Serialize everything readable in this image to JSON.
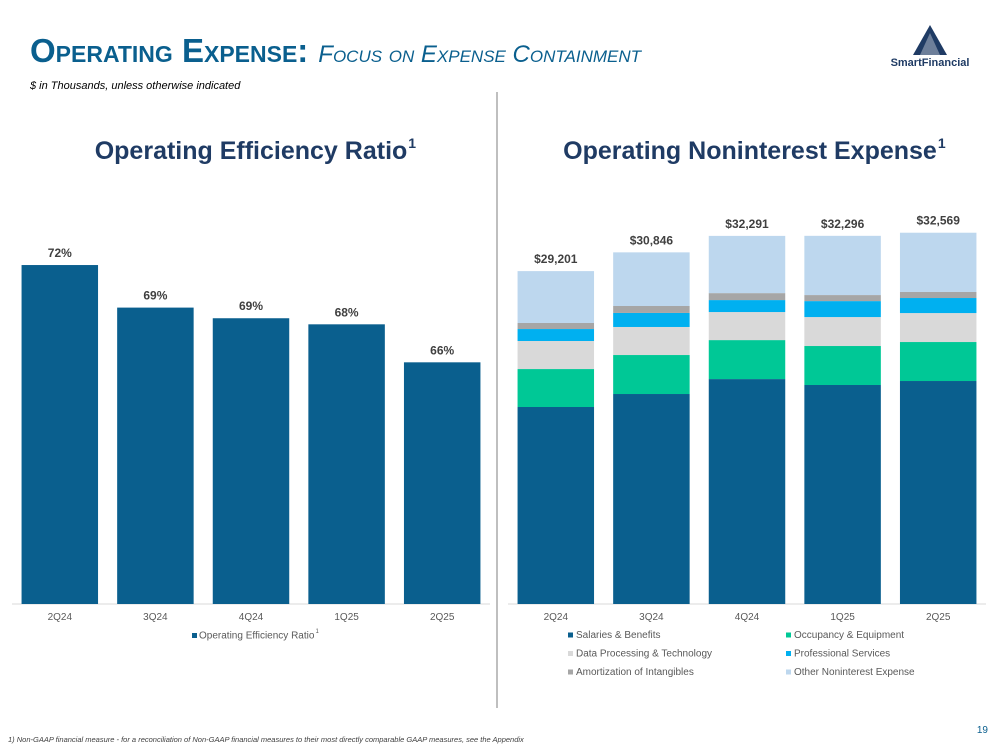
{
  "header": {
    "title_lead": "Operating Expense:",
    "title_rest": "Focus on Expense Containment",
    "subtitle": "$ in Thousands, unless otherwise indicated",
    "logo": "SmartFinancial"
  },
  "chart_data": [
    {
      "type": "bar",
      "title": "Operating Efficiency Ratio",
      "title_note": "1",
      "categories": [
        "2Q24",
        "3Q24",
        "4Q24",
        "1Q25",
        "2Q25"
      ],
      "series": [
        {
          "name": "Operating Efficiency Ratio",
          "color": "#0a5f8e",
          "values": [
            72.3,
            69.5,
            68.8,
            68.4,
            65.9
          ],
          "value_labels": [
            "72%",
            "69%",
            "69%",
            "68%",
            "66%"
          ]
        }
      ],
      "legend_note": "1",
      "ylim": [
        50,
        80
      ]
    },
    {
      "type": "stacked_bar",
      "title": "Operating Noninterest Expense",
      "title_note": "1",
      "categories": [
        "2Q24",
        "3Q24",
        "4Q24",
        "1Q25",
        "2Q25"
      ],
      "series": [
        {
          "name": "Salaries & Benefits",
          "color": "#0a5f8e",
          "values": [
            17280,
            18420,
            19730,
            19210,
            19560
          ]
        },
        {
          "name": "Occupancy & Equipment",
          "color": "#00c896",
          "values": [
            3330,
            3420,
            3420,
            3420,
            3420
          ]
        },
        {
          "name": "Data Processing & Technology",
          "color": "#d9d9d9",
          "values": [
            2460,
            2460,
            2460,
            2540,
            2540
          ]
        },
        {
          "name": "Professional Services",
          "color": "#00b0f0",
          "values": [
            1050,
            1230,
            1050,
            1400,
            1320
          ]
        },
        {
          "name": "Amortization of Intangibles",
          "color": "#a6a6a6",
          "values": [
            530,
            610,
            610,
            530,
            530
          ]
        },
        {
          "name": "Other Noninterest Expense",
          "color": "#bdd7ee",
          "values": [
            4551,
            4706,
            5021,
            5196,
            5199
          ]
        }
      ],
      "totals": [
        29201,
        30846,
        32291,
        32296,
        32569
      ],
      "total_labels": [
        "$29,201",
        "$30,846",
        "$32,291",
        "$32,296",
        "$32,569"
      ],
      "ylim": [
        0,
        40000
      ]
    }
  ],
  "footnote": "1) Non-GAAP financial measure - for a reconciliation of Non-GAAP financial measures to their most directly comparable GAAP measures, see the Appendix",
  "page_number": 19
}
